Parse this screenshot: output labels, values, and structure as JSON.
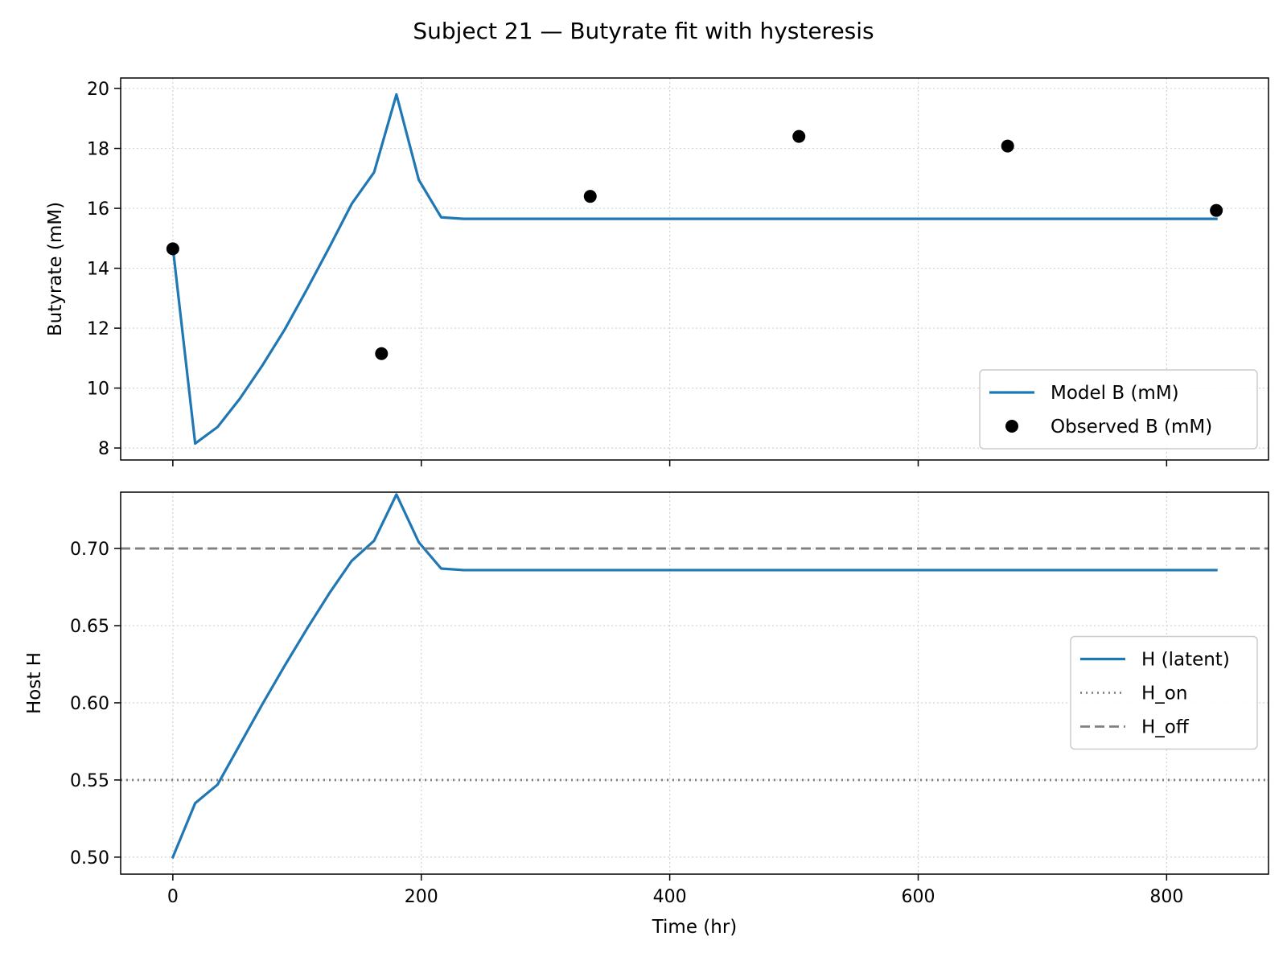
{
  "title": "Subject 21 — Butyrate fit with hysteresis",
  "chart_data": [
    {
      "type": "line",
      "panel": "top",
      "ylabel": "Butyrate (mM)",
      "xlim": [
        -42,
        882
      ],
      "ylim": [
        7.6,
        20.35
      ],
      "xticks": [
        0,
        200,
        400,
        600,
        800
      ],
      "yticks": [
        8,
        10,
        12,
        14,
        16,
        18,
        20
      ],
      "grid": true,
      "legend": "bottom-right",
      "series": [
        {
          "name": "Model B (mM)",
          "kind": "line",
          "color": "#1f77b4",
          "x": [
            0,
            18,
            36,
            54,
            72,
            90,
            108,
            126,
            144,
            162,
            180,
            198,
            216,
            234,
            840
          ],
          "y": [
            14.7,
            8.15,
            8.7,
            9.65,
            10.75,
            11.95,
            13.3,
            14.7,
            16.15,
            17.2,
            19.8,
            16.95,
            15.7,
            15.65,
            15.65
          ]
        },
        {
          "name": "Observed B (mM)",
          "kind": "scatter",
          "color": "#000000",
          "x": [
            0,
            168,
            336,
            504,
            672,
            840
          ],
          "y": [
            14.65,
            11.15,
            16.4,
            18.4,
            18.08,
            15.93
          ]
        }
      ]
    },
    {
      "type": "line",
      "panel": "bottom",
      "xlabel": "Time (hr)",
      "ylabel": "Host H",
      "xlim": [
        -42,
        882
      ],
      "ylim": [
        0.489,
        0.7365
      ],
      "xticks": [
        0,
        200,
        400,
        600,
        800
      ],
      "xticklabels": [
        "0",
        "200",
        "400",
        "600",
        "800"
      ],
      "yticks": [
        0.5,
        0.55,
        0.6,
        0.65,
        0.7
      ],
      "yticklabels": [
        "0.50",
        "0.55",
        "0.60",
        "0.65",
        "0.70"
      ],
      "grid": true,
      "legend": "center-right",
      "series": [
        {
          "name": "H (latent)",
          "kind": "line",
          "color": "#1f77b4",
          "x": [
            0,
            18,
            36,
            54,
            72,
            90,
            108,
            126,
            144,
            162,
            180,
            198,
            216,
            234,
            840
          ],
          "y": [
            0.5,
            0.535,
            0.547,
            0.573,
            0.599,
            0.624,
            0.648,
            0.671,
            0.692,
            0.705,
            0.735,
            0.704,
            0.687,
            0.686,
            0.686
          ]
        },
        {
          "name": "H_on",
          "kind": "hline",
          "style": "dotted",
          "color": "#808080",
          "y": 0.55
        },
        {
          "name": "H_off",
          "kind": "hline",
          "style": "dashed",
          "color": "#808080",
          "y": 0.7
        }
      ]
    }
  ]
}
